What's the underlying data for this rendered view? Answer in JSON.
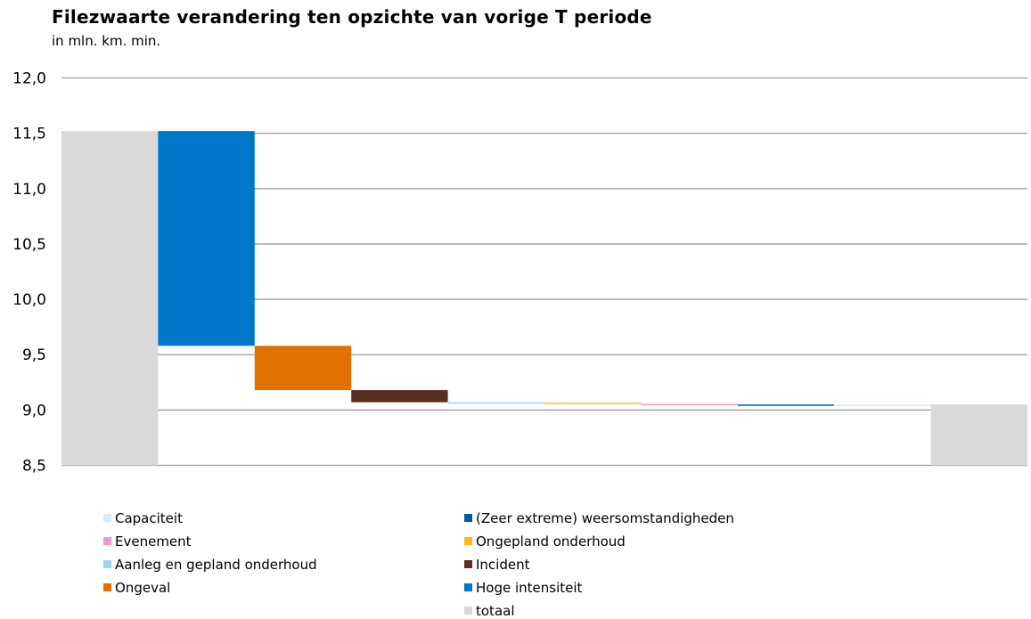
{
  "chart_data": {
    "type": "bar",
    "subtype": "waterfall",
    "title": "Filezwaarte verandering ten opzichte van vorige T periode",
    "subtitle": "in mln. km. min.",
    "xlabel": "",
    "ylabel": "",
    "ylim": [
      8.5,
      12.0
    ],
    "yticks": [
      "8,5",
      "9,0",
      "9,5",
      "10,0",
      "10,5",
      "11,0",
      "11,5",
      "12,0"
    ],
    "ytick_values": [
      8.5,
      9.0,
      9.5,
      10.0,
      10.5,
      11.0,
      11.5,
      12.0
    ],
    "grid": true,
    "legend_position": "bottom",
    "steps": [
      {
        "category": "totaal",
        "start": 8.5,
        "end": 11.52,
        "color": "#d9d9d9"
      },
      {
        "category": "Hoge intensiteit",
        "start": 11.52,
        "end": 9.58,
        "color": "#0077c8"
      },
      {
        "category": "Ongeval",
        "start": 9.58,
        "end": 9.18,
        "color": "#e07000"
      },
      {
        "category": "Incident",
        "start": 9.18,
        "end": 9.07,
        "color": "#5b2e22"
      },
      {
        "category": "Aanleg en gepland onderhoud",
        "start": 9.07,
        "end": 9.065,
        "color": "#9cd4ee"
      },
      {
        "category": "Ongepland onderhoud",
        "start": 9.065,
        "end": 9.055,
        "color": "#ffb81c"
      },
      {
        "category": "Evenement",
        "start": 9.055,
        "end": 9.05,
        "color": "#f29ac8"
      },
      {
        "category": "(Zeer extreme) weersomstandigheden",
        "start": 9.05,
        "end": 9.048,
        "color": "#005f9e"
      },
      {
        "category": "Capaciteit",
        "start": 9.048,
        "end": 9.046,
        "color": "#d6ecfa"
      },
      {
        "category": "totaal",
        "start": 8.5,
        "end": 9.05,
        "color": "#d9d9d9"
      }
    ]
  },
  "legend": [
    {
      "label": "Capaciteit",
      "color": "#d6ecfa"
    },
    {
      "label": "(Zeer extreme) weersomstandigheden",
      "color": "#005f9e"
    },
    {
      "label": "Evenement",
      "color": "#f29ac8"
    },
    {
      "label": "Ongepland onderhoud",
      "color": "#ffb81c"
    },
    {
      "label": "Aanleg en gepland onderhoud",
      "color": "#9cd4ee"
    },
    {
      "label": "Incident",
      "color": "#5b2e22"
    },
    {
      "label": "Ongeval",
      "color": "#e07000"
    },
    {
      "label": "Hoge intensiteit",
      "color": "#0077c8"
    },
    {
      "label": "",
      "color": ""
    },
    {
      "label": "totaal",
      "color": "#d9d9d9"
    }
  ]
}
